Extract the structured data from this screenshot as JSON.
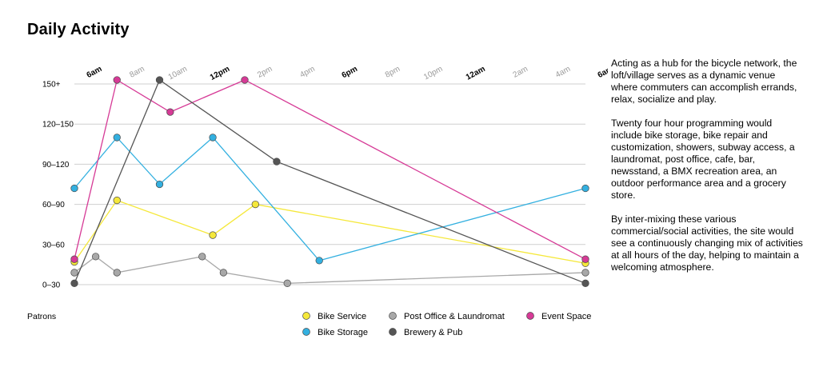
{
  "title": "Daily Activity",
  "description": [
    "Acting as a hub for the bicycle network, the loft/village serves as a dynamic venue where commuters can accomplish errands, relax, socialize and play.",
    "Twenty four hour programming would include bike storage, bike repair and customization, showers, subway access, a laundromat, post office, cafe, bar, newsstand, a BMX recreation area, an outdoor performance area and a grocery store.",
    "By inter-mixing these various commercial/social activities, the site would see a continuously changing mix of activities at all hours of the day, helping to maintain a welcoming atmosphere."
  ],
  "chart_data": {
    "type": "line",
    "title": "Daily Activity",
    "ylabel": "Patrons",
    "xlabel": "",
    "x_ticks": [
      "6am",
      "8am",
      "10am",
      "12pm",
      "2pm",
      "4pm",
      "6pm",
      "8pm",
      "10pm",
      "12am",
      "2am",
      "4am",
      "6am"
    ],
    "x_tick_emphasis": [
      true,
      false,
      false,
      true,
      false,
      false,
      true,
      false,
      false,
      true,
      false,
      false,
      true
    ],
    "y_ticks": [
      "0–30",
      "30–60",
      "60–90",
      "90–120",
      "120–150",
      "150+"
    ],
    "ylim": [
      0,
      150
    ],
    "xlim": [
      0,
      24
    ],
    "grid": true,
    "legend_position": "bottom",
    "series": [
      {
        "name": "Bike Service",
        "color": "#f5e83a",
        "points": [
          [
            0,
            17
          ],
          [
            2,
            63
          ],
          [
            6.5,
            37
          ],
          [
            8.5,
            60
          ],
          [
            24,
            16
          ]
        ]
      },
      {
        "name": "Bike Storage",
        "color": "#33b0e0",
        "points": [
          [
            0,
            72
          ],
          [
            2,
            110
          ],
          [
            4,
            75
          ],
          [
            6.5,
            110
          ],
          [
            11.5,
            18
          ],
          [
            24,
            72
          ]
        ]
      },
      {
        "name": "Event Space",
        "color": "#d63a96",
        "points": [
          [
            0,
            19
          ],
          [
            2,
            153
          ],
          [
            4.5,
            129
          ],
          [
            8,
            153
          ],
          [
            24,
            19
          ]
        ]
      },
      {
        "name": "Post Office & Laundromat",
        "color": "#a8a8a8",
        "points": [
          [
            0,
            9
          ],
          [
            1,
            21
          ],
          [
            2,
            9
          ],
          [
            6,
            21
          ],
          [
            7,
            9
          ],
          [
            10,
            1
          ],
          [
            24,
            9
          ]
        ]
      },
      {
        "name": "Brewery & Pub",
        "color": "#555555",
        "points": [
          [
            0,
            1
          ],
          [
            4,
            153
          ],
          [
            9.5,
            92
          ],
          [
            24,
            1
          ]
        ]
      }
    ]
  }
}
